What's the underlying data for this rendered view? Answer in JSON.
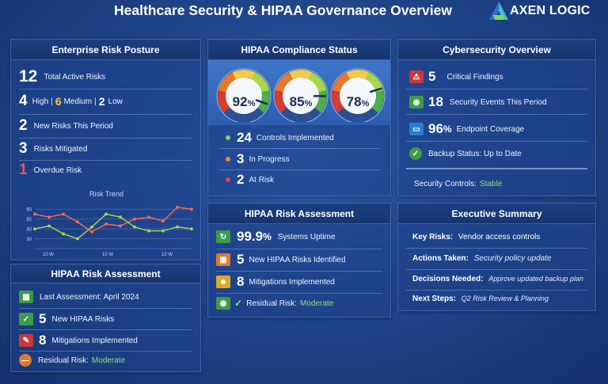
{
  "header": {
    "title": "Healthcare Security & HIPAA Governance Overview",
    "logo_text": "AXEN LOGIC"
  },
  "risk_posture": {
    "title": "Enterprise Risk Posture",
    "total_value": "12",
    "total_label": "Total Active Risks",
    "high_value": "4",
    "high_label": "High",
    "medium_value": "6",
    "medium_label": "Medium",
    "low_value": "2",
    "low_label": "Low",
    "new_value": "2",
    "new_label": "New Risks This Period",
    "mitigated_value": "3",
    "mitigated_label": "Risks Mitigated",
    "overdue_value": "1",
    "overdue_label": "Overdue Risk",
    "trend_title": "Risk Trend"
  },
  "chart_data": {
    "type": "line",
    "title": "Risk Trend",
    "x": [
      1,
      2,
      3,
      4,
      5,
      6,
      7,
      8,
      9,
      10,
      11,
      12
    ],
    "x_tick_labels": [
      "10 W",
      "10 W",
      "10 W"
    ],
    "y_ticks": [
      "60",
      "50",
      "40",
      "30"
    ],
    "ylim": [
      20,
      65
    ],
    "series": [
      {
        "color": "#ff6b4a",
        "values": [
          55,
          52,
          55,
          47,
          37,
          45,
          43,
          50,
          52,
          48,
          62,
          60
        ]
      },
      {
        "color": "#a8d84a",
        "values": [
          40,
          43,
          35,
          30,
          42,
          55,
          52,
          42,
          38,
          38,
          42,
          40
        ]
      }
    ]
  },
  "hipaa_small": {
    "title": "HIPAA Risk Assessment",
    "last_assessment": "Last Assessment: April 2024",
    "new_value": "5",
    "new_label": "New HIPAA Risks",
    "mit_value": "8",
    "mit_label": "Mitigations Implemented",
    "residual_label": "Residual Risk:",
    "residual_value": "Moderate"
  },
  "compliance": {
    "title": "HIPAA Compliance Status",
    "gauges": [
      {
        "value": "92",
        "unit": "%",
        "level": 0.92
      },
      {
        "value": "85",
        "unit": "%",
        "level": 0.85
      },
      {
        "value": "78",
        "unit": "%",
        "level": 0.78
      }
    ],
    "implemented_value": "24",
    "implemented_label": "Controls Implemented",
    "progress_value": "3",
    "progress_label": "In Progress",
    "atrisk_value": "2",
    "atrisk_label": "At Risk"
  },
  "assessment": {
    "title": "HIPAA Risk Assessment",
    "uptime_value": "99.9",
    "uptime_unit": "%",
    "uptime_label": "Systems Uptime",
    "new_value": "5",
    "new_label": "New HIPAA Risks Identified",
    "mit_value": "8",
    "mit_label": "Mitigations Implemented",
    "residual_label": "Residual Risk:",
    "residual_value": "Moderate"
  },
  "cyber": {
    "title": "Cybersecurity Overview",
    "critical_value": "5",
    "critical_label": "Critical Findings",
    "events_value": "18",
    "events_label": "Security Events This Period",
    "endpoint_value": "96",
    "endpoint_unit": "%",
    "endpoint_label": "Endpoint Coverage",
    "backup_label": "Backup Status: Up to Date",
    "controls_label": "Security Controls:",
    "controls_value": "Stable"
  },
  "summary": {
    "title": "Executive Summary",
    "key_label": "Key Risks:",
    "key_value": "Vendor access controls",
    "actions_label": "Actions Taken:",
    "actions_value": "Security policy update",
    "decisions_label": "Decisions Needed:",
    "decisions_value": "Approve updated backup plan",
    "next_label": "Next Steps:",
    "next_value": "Q2 Risk Review & Planning"
  },
  "colors": {
    "accent": "#8fe07a",
    "warning": "#f2c94c",
    "danger": "#e35a5a",
    "panel_header": "#1c3e80"
  }
}
